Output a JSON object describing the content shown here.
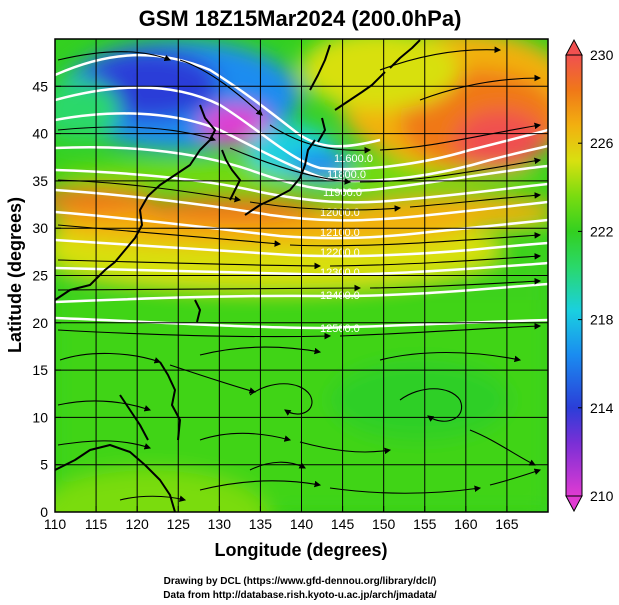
{
  "title": "GSM 18Z15Mar2024 (200.0hPa)",
  "x_label": "Longitude (degrees)",
  "y_label": "Latitude  (degrees)",
  "credits": [
    "Drawing by DCL (https://www.gfd-dennou.org/library/dcl/)",
    "Data from http://database.rish.kyoto-u.ac.jp/arch/jmadata/"
  ],
  "contour_labels": [
    "11600.0",
    "11800.0",
    "11900.0",
    "12000.0",
    "12100.0",
    "12200.0",
    "12300.0",
    "12400.0",
    "12500.0"
  ],
  "colors": {
    "scale": [
      "#e03bd2",
      "#7a2fd6",
      "#2b3ed8",
      "#1a8cf0",
      "#1ad0e0",
      "#2ad86a",
      "#33d020",
      "#7adc10",
      "#d8e010",
      "#f2b010",
      "#f07818",
      "#f05050"
    ],
    "contour": "#ffffff",
    "streamline": "#000000"
  },
  "chart_data": {
    "type": "heatmap",
    "xlim": [
      110,
      170
    ],
    "ylim": [
      0,
      50
    ],
    "x_ticks": [
      "110",
      "115",
      "120",
      "125",
      "130",
      "135",
      "140",
      "145",
      "150",
      "155",
      "160",
      "165"
    ],
    "y_ticks": [
      "0",
      "5",
      "10",
      "15",
      "20",
      "25",
      "30",
      "35",
      "40",
      "45"
    ],
    "colorbar": {
      "min": 210,
      "max": 230,
      "ticks": [
        "210",
        "214",
        "218",
        "222",
        "226",
        "230"
      ]
    },
    "grid": true
  }
}
